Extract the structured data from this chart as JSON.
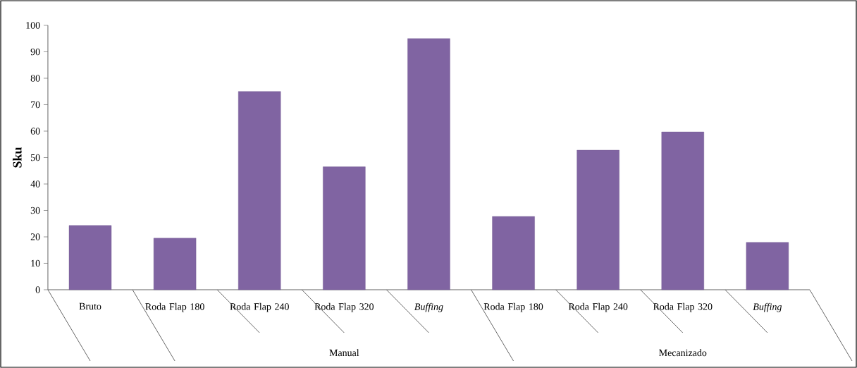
{
  "chart_data": {
    "type": "bar",
    "ylabel": "Sku",
    "categories": [
      "Bruto",
      "Roda Flap 180",
      "Roda Flap 240",
      "Roda Flap 320",
      "*Buffing*",
      "Roda Flap 180",
      "Roda Flap 240",
      "Roda Flap 320",
      "*Buffing*"
    ],
    "values": [
      24.3,
      19.5,
      75,
      46.5,
      95,
      27.7,
      52.8,
      59.7,
      17.9
    ],
    "color": "#8064a2",
    "ylim": [
      0,
      100
    ],
    "yticks": [
      0,
      10,
      20,
      30,
      40,
      50,
      60,
      70,
      80,
      90,
      100
    ],
    "annotations": [
      "Manual",
      "Mecanizado"
    ]
  }
}
